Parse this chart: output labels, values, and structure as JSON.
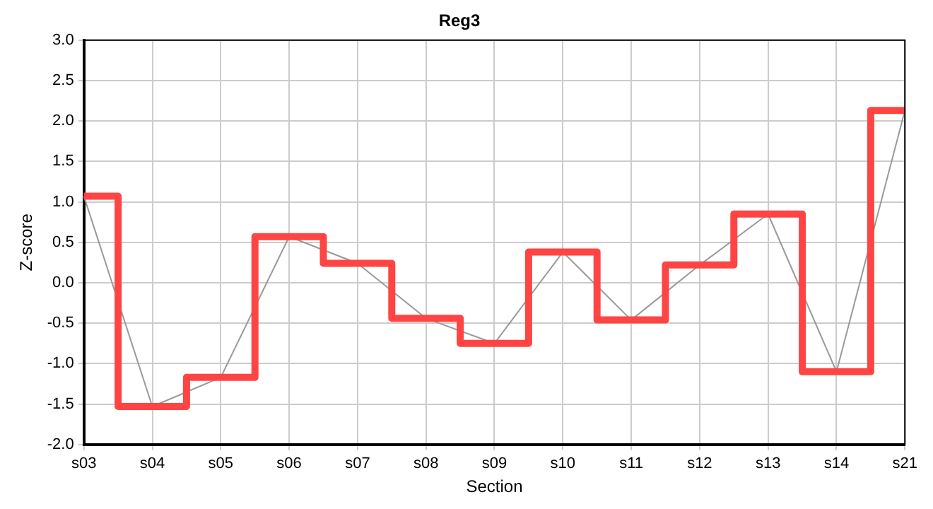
{
  "chart_data": {
    "type": "line",
    "title": "Reg3",
    "xlabel": "Section",
    "ylabel": "Z-score",
    "categories": [
      "s03",
      "s04",
      "s05",
      "s06",
      "s07",
      "s08",
      "s09",
      "s10",
      "s11",
      "s12",
      "s13",
      "s14",
      "s21"
    ],
    "series": [
      {
        "color": "#999999",
        "values": [
          1.07,
          -1.53,
          -1.17,
          0.57,
          0.24,
          -0.44,
          -0.75,
          0.38,
          -0.46,
          0.22,
          0.85,
          -1.1,
          2.13
        ]
      },
      {
        "type": "step",
        "color": "#ff4444",
        "values": [
          1.07,
          -1.53,
          -1.17,
          0.57,
          0.24,
          -0.44,
          -0.75,
          0.38,
          -0.46,
          0.22,
          0.85,
          -1.1,
          2.13
        ]
      }
    ],
    "ylim": [
      -2,
      3
    ],
    "yticks": [
      {
        "value": -2,
        "label": "-2.0"
      },
      -1.5,
      {
        "value": -1,
        "label": "-1.0"
      },
      -0.5,
      {
        "value": 0,
        "label": "0.0"
      },
      0.5,
      {
        "value": 1,
        "label": "1.0"
      },
      1.5,
      {
        "value": 2,
        "label": "2.0"
      },
      2.5,
      {
        "value": 3,
        "label": "3.0"
      }
    ],
    "grid": true,
    "legend": false,
    "marker": "none",
    "line_style": "solid"
  }
}
